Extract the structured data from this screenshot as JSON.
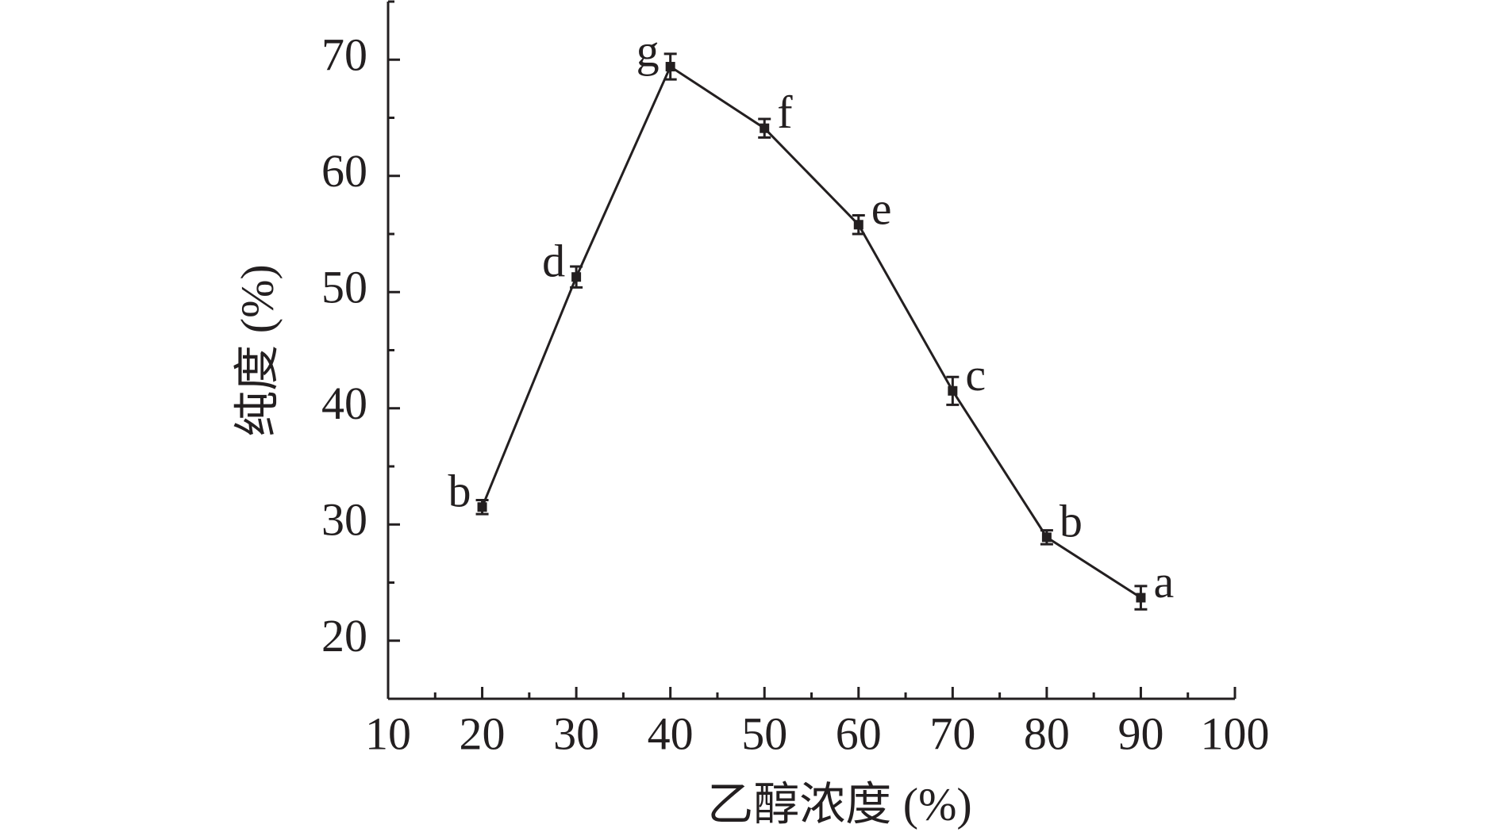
{
  "chart_data": {
    "type": "line",
    "x_label": "乙醇浓度 (%)",
    "y_label": "纯度 (%)",
    "x": [
      20,
      30,
      40,
      50,
      60,
      70,
      80,
      90
    ],
    "series": [
      {
        "color": "#231f20",
        "values": [
          31.5,
          51.3,
          69.4,
          64.1,
          55.8,
          41.5,
          28.9,
          23.7
        ],
        "errors": [
          0.6,
          0.9,
          1.1,
          0.8,
          0.8,
          1.2,
          0.6,
          1.0
        ],
        "annotations": [
          "b",
          "d",
          "g",
          "f",
          "e",
          "c",
          "b",
          "a"
        ]
      }
    ],
    "xlim": [
      10,
      100
    ],
    "xticks": [
      10,
      20,
      30,
      40,
      50,
      60,
      70,
      80,
      90,
      100
    ],
    "xminorticks": [
      15,
      25,
      35,
      45,
      55,
      65,
      75,
      85,
      95
    ],
    "ylim": [
      15,
      75
    ],
    "yticks": [
      20,
      30,
      40,
      50,
      60,
      70
    ],
    "yminorticks": [
      15,
      25,
      35,
      45,
      55,
      65,
      75
    ]
  }
}
